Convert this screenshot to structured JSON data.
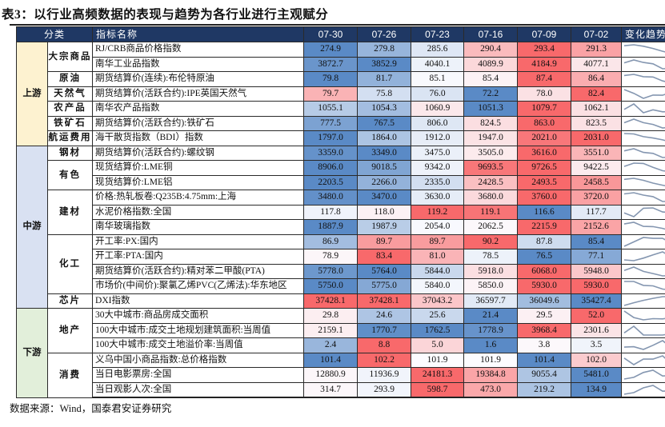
{
  "title": "表3：以行业高频数据的表现与趋势为各行业进行主观赋分",
  "headers": {
    "category": "分类",
    "indicator": "指标名称",
    "dates": [
      "07-30",
      "07-26",
      "07-23",
      "07-16",
      "07-09",
      "07-02"
    ],
    "trend": "变化趋势"
  },
  "colors": {
    "header_bg": "#1f3864",
    "low": "#5a8ac6",
    "mid": "#fcfcff",
    "high": "#f8696b",
    "sparkline": "#8496b0"
  },
  "groups": [
    {
      "name": "上游",
      "color": "#fdf2d0",
      "categories": [
        {
          "name": "大宗商品",
          "rows": [
            {
              "name": "RJ/CRB商品价格指数",
              "values": [
                "274.9",
                "279.8",
                "285.6",
                "290.4",
                "293.4",
                "291.3"
              ]
            },
            {
              "name": "南华工业品指数",
              "values": [
                "3872.7",
                "3852.9",
                "4040.1",
                "4089.9",
                "4184.9",
                "4077.1"
              ]
            }
          ]
        },
        {
          "name": "原油",
          "rows": [
            {
              "name": "期货结算价(连续):布伦特原油",
              "values": [
                "79.8",
                "81.7",
                "85.1",
                "85.4",
                "87.4",
                "86.4"
              ]
            }
          ]
        },
        {
          "name": "天然气",
          "rows": [
            {
              "name": "期货结算价(活跃合约):IPE英国天然气",
              "values": [
                "79.7",
                "75.8",
                "76.0",
                "72.2",
                "78.0",
                "82.4"
              ]
            }
          ]
        },
        {
          "name": "农产品",
          "rows": [
            {
              "name": "南华农产品指数",
              "values": [
                "1055.1",
                "1054.3",
                "1060.9",
                "1051.3",
                "1079.7",
                "1062.1"
              ]
            }
          ]
        },
        {
          "name": "铁矿石",
          "rows": [
            {
              "name": "期货结算价(活跃合约):铁矿石",
              "values": [
                "777.5",
                "767.5",
                "806.0",
                "824.5",
                "863.0",
                "823.5"
              ]
            }
          ]
        },
        {
          "name": "航运费用",
          "rows": [
            {
              "name": "海干散货指数（BDI）指数",
              "values": [
                "1797.0",
                "1864.0",
                "1912.0",
                "1947.0",
                "2021.0",
                "2031.0"
              ]
            }
          ]
        }
      ]
    },
    {
      "name": "中游",
      "color": "#d9e1f2",
      "categories": [
        {
          "name": "钢材",
          "rows": [
            {
              "name": "期货结算价(活跃合约):螺纹钢",
              "values": [
                "3359.0",
                "3349.0",
                "3475.0",
                "3505.0",
                "3616.0",
                "3551.0"
              ]
            }
          ]
        },
        {
          "name": "有色",
          "rows": [
            {
              "name": "现货结算价:LME铜",
              "values": [
                "8906.0",
                "9018.5",
                "9342.0",
                "9693.5",
                "9726.5",
                "9422.5"
              ]
            },
            {
              "name": "现货结算价:LME铝",
              "values": [
                "2203.5",
                "2266.0",
                "2335.0",
                "2428.5",
                "2493.5",
                "2458.5"
              ]
            }
          ]
        },
        {
          "name": "建材",
          "rows": [
            {
              "name": "价格:热轧板卷:Q235B:4.75mm:上海",
              "values": [
                "3480.0",
                "3470.0",
                "3630.0",
                "3680.0",
                "3760.0",
                "3720.0"
              ]
            },
            {
              "name": "水泥价格指数:全国",
              "values": [
                "117.8",
                "118.0",
                "119.2",
                "119.1",
                "116.6",
                "117.7"
              ]
            },
            {
              "name": "南华玻璃指数",
              "values": [
                "1887.9",
                "1987.9",
                "2054.0",
                "2062.5",
                "2215.9",
                "2152.6"
              ]
            }
          ]
        },
        {
          "name": "化工",
          "rows": [
            {
              "name": "开工率:PX:国内",
              "values": [
                "86.9",
                "89.7",
                "89.7",
                "90.2",
                "87.8",
                "85.4"
              ]
            },
            {
              "name": "开工率:PTA:国内",
              "values": [
                "78.9",
                "83.4",
                "81.0",
                "78.5",
                "76.5",
                "77.1"
              ]
            },
            {
              "name": "期货结算价(活跃合约):精对苯二甲酸(PTA)",
              "values": [
                "5778.0",
                "5764.0",
                "5844.0",
                "5918.0",
                "6068.0",
                "5948.0"
              ]
            },
            {
              "name": "市场价(中间价):聚氯乙烯PVC(乙烯法):华东地区",
              "values": [
                "5750.0",
                "5775.0",
                "5840.0",
                "5850.0",
                "5930.0",
                "5930.0"
              ]
            }
          ]
        },
        {
          "name": "芯片",
          "rows": [
            {
              "name": "DXI指数",
              "values": [
                "37428.1",
                "37428.1",
                "37043.2",
                "36597.7",
                "36049.6",
                "35427.4"
              ]
            }
          ]
        }
      ]
    },
    {
      "name": "下游",
      "color": "#e2efda",
      "categories": [
        {
          "name": "地产",
          "rows": [
            {
              "name": "30大中城市:商品房成交面积",
              "values": [
                "29.8",
                "24.6",
                "25.6",
                "21.4",
                "29.5",
                "52.0"
              ]
            },
            {
              "name": "100大中城市:成交土地规划建筑面积:当周值",
              "values": [
                "2159.1",
                "1770.7",
                "1762.5",
                "1778.9",
                "3968.4",
                "2301.6"
              ]
            },
            {
              "name": "100大中城市:成交土地溢价率:当周值",
              "values": [
                "2.4",
                "8.8",
                "5.0",
                "1.6",
                "3.8",
                "3.5"
              ]
            }
          ]
        },
        {
          "name": "消费",
          "rows": [
            {
              "name": "义乌中国小商品指数:总价格指数",
              "values": [
                "101.4",
                "102.2",
                "101.9",
                "101.9",
                "101.4",
                "102.0"
              ]
            },
            {
              "name": "当日电影票房:全国",
              "values": [
                "12880.9",
                "11936.9",
                "24181.3",
                "19384.8",
                "9055.4",
                "5481.0"
              ]
            },
            {
              "name": "当日观影人次:全国",
              "values": [
                "314.7",
                "293.9",
                "598.7",
                "473.0",
                "219.2",
                "134.9"
              ]
            }
          ]
        }
      ]
    }
  ],
  "source": "数据来源：Wind，国泰君安证券研究"
}
